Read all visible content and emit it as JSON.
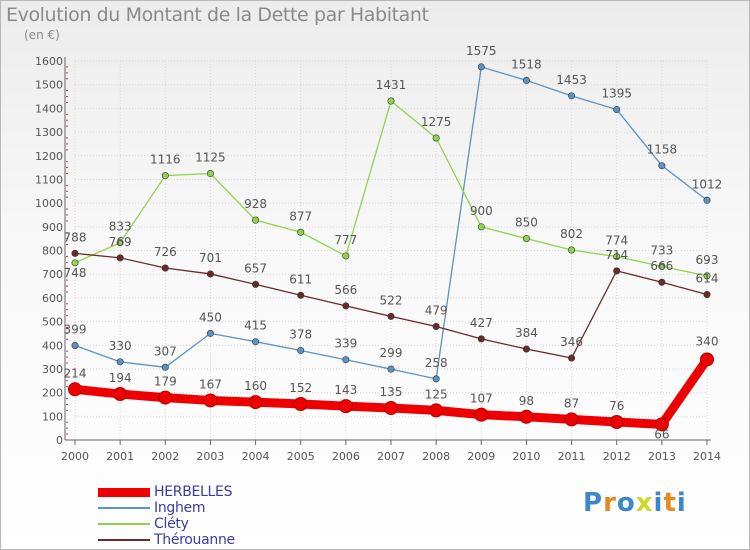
{
  "chart_data": {
    "type": "line",
    "title": "Evolution du Montant de la Dette par Habitant",
    "subtitle": "(en €)",
    "xlabel": "",
    "ylabel": "",
    "ylim": [
      0,
      1600
    ],
    "yticks": [
      "0",
      "100",
      "200",
      "300",
      "400",
      "500",
      "600",
      "700",
      "800",
      "900",
      "1000",
      "1100",
      "1200",
      "1300",
      "1400",
      "1500",
      "1600"
    ],
    "x": [
      "2000",
      "2001",
      "2002",
      "2003",
      "2004",
      "2005",
      "2006",
      "2007",
      "2008",
      "2009",
      "2010",
      "2011",
      "2012",
      "2013",
      "2014"
    ],
    "grid": true,
    "legend_position": "bottom-left",
    "series": [
      {
        "name": "Inghem",
        "color": "#5b93c4",
        "values": [
          399,
          330,
          307,
          450,
          415,
          378,
          339,
          299,
          258,
          1575,
          1518,
          1453,
          1395,
          1158,
          1012
        ],
        "labels": [
          "399",
          "330",
          "307",
          "450",
          "415",
          "378",
          "339",
          "299",
          "258",
          "1575",
          "1518",
          "1453",
          "1395",
          "1158",
          "1012"
        ]
      },
      {
        "name": "Cléty",
        "color": "#8fd44f",
        "values": [
          748,
          833,
          1116,
          1125,
          928,
          877,
          777,
          1431,
          1275,
          900,
          850,
          802,
          774,
          733,
          693
        ],
        "labels": [
          "748",
          "833",
          "1116",
          "1125",
          "928",
          "877",
          "777",
          "1431",
          "1275",
          "900",
          "850",
          "802",
          "774",
          "733",
          "693"
        ]
      },
      {
        "name": "Thérouanne",
        "color": "#6b2a2a",
        "values": [
          788,
          769,
          726,
          701,
          657,
          611,
          566,
          522,
          479,
          427,
          384,
          346,
          714,
          666,
          614
        ],
        "labels": [
          "788",
          "769",
          "726",
          "701",
          "657",
          "611",
          "566",
          "522",
          "479",
          "427",
          "384",
          "346",
          "714",
          "666",
          "614"
        ]
      },
      {
        "name": "HERBELLES",
        "color": "#ee0000",
        "values": [
          214,
          194,
          179,
          167,
          160,
          152,
          143,
          135,
          125,
          107,
          98,
          87,
          76,
          66,
          340
        ],
        "labels": [
          "214",
          "194",
          "179",
          "167",
          "160",
          "152",
          "143",
          "135",
          "125",
          "107",
          "98",
          "87",
          "76",
          "66",
          "340"
        ]
      }
    ],
    "legend_order": [
      "HERBELLES",
      "Inghem",
      "Cléty",
      "Thérouanne"
    ]
  },
  "logo_text": "Proxiti",
  "logo_colors": [
    "#3f86c6",
    "#e58a1f",
    "#3f86c6",
    "#d0d82a",
    "#3f86c6",
    "#e58a1f",
    "#3f86c6"
  ]
}
